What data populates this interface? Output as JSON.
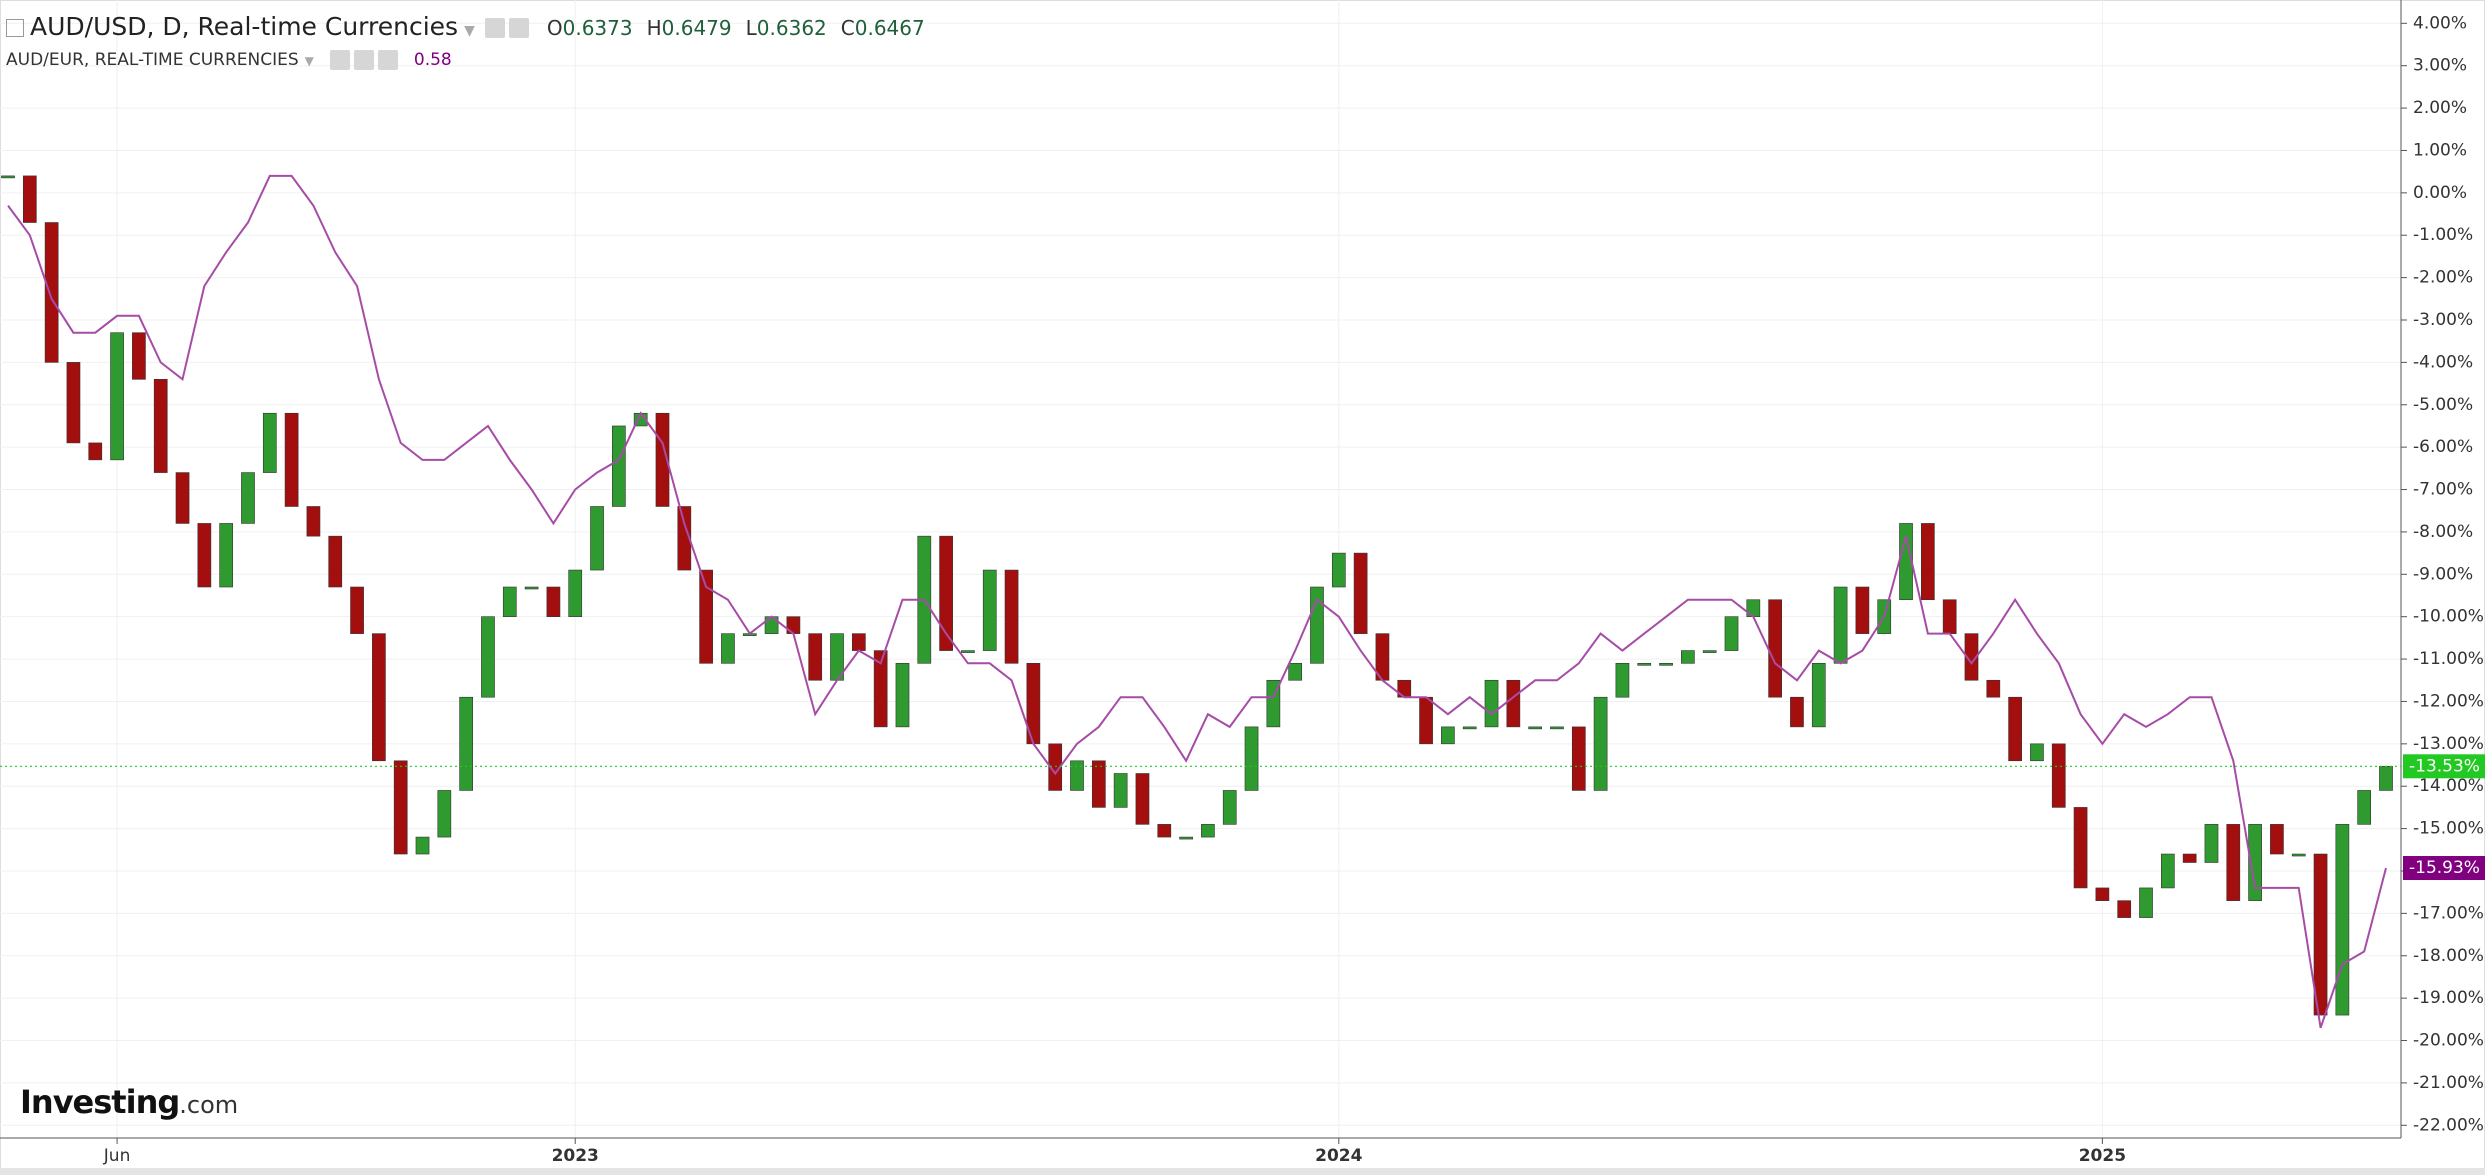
{
  "header": {
    "title": "AUD/USD, D, Real-time Currencies",
    "ohlc": [
      {
        "label": "O",
        "value": 0.6373
      },
      {
        "label": "H",
        "value": 0.6479
      },
      {
        "label": "L",
        "value": 0.6362
      },
      {
        "label": "C",
        "value": 0.6467
      }
    ],
    "overlay_title": "AUD/EUR, REAL-TIME CURRENCIES",
    "overlay_value": 0.58
  },
  "logo": {
    "brand": "Investing",
    "suffix": ".com"
  },
  "chart_data": {
    "type": "candlestick",
    "categories": [
      null,
      null,
      null,
      null,
      null,
      "Jun",
      null,
      null,
      null,
      null,
      null,
      null,
      null,
      null,
      null,
      null,
      null,
      null,
      null,
      null,
      null,
      null,
      null,
      null,
      null,
      null,
      "2023",
      null,
      null,
      null,
      null,
      null,
      null,
      null,
      null,
      null,
      null,
      null,
      null,
      null,
      null,
      null,
      null,
      null,
      null,
      null,
      null,
      null,
      null,
      null,
      null,
      null,
      null,
      null,
      null,
      null,
      null,
      null,
      null,
      null,
      null,
      "2024",
      null,
      null,
      null,
      null,
      null,
      null,
      null,
      null,
      null,
      null,
      null,
      null,
      null,
      null,
      null,
      null,
      null,
      null,
      null,
      null,
      null,
      null,
      null,
      null,
      null,
      null,
      null,
      null,
      null,
      null,
      null,
      null,
      null,
      null,
      "2025",
      null,
      null,
      null,
      null,
      null,
      null,
      null,
      null,
      null,
      null,
      null,
      null,
      null
    ],
    "series": [
      {
        "name": "AUD/USD",
        "type": "candlestick",
        "up_color": "#2f9a2f",
        "down_color": "#a30f0f",
        "color": "#22c922",
        "last_label": "-13.53%",
        "values": [
          0.4,
          -0.7,
          -4,
          -5.9,
          -6.3,
          -3.3,
          -4.4,
          -6.6,
          -7.8,
          -9.3,
          -7.8,
          -6.6,
          -5.2,
          -7.4,
          -8.1,
          -9.3,
          -10.4,
          -13.4,
          -15.6,
          -15.2,
          -14.1,
          -11.9,
          -10,
          -9.3,
          -9.3,
          -10,
          -8.9,
          -7.4,
          -5.5,
          -5.2,
          -7.4,
          -8.9,
          -11.1,
          -10.4,
          -10.4,
          -10,
          -10.4,
          -11.5,
          -10.4,
          -10.8,
          -12.6,
          -11.1,
          -8.1,
          -10.8,
          -10.8,
          -8.9,
          -11.1,
          -13,
          -14.1,
          -13.4,
          -14.5,
          -13.7,
          -14.9,
          -15.2,
          -15.2,
          -14.9,
          -14.1,
          -12.6,
          -11.5,
          -11.1,
          -9.3,
          -8.5,
          -10.4,
          -11.5,
          -11.9,
          -13,
          -12.6,
          -12.6,
          -11.5,
          -12.6,
          -12.6,
          -12.6,
          -14.1,
          -11.9,
          -11.1,
          -11.1,
          -11.1,
          -10.8,
          -10.8,
          -10,
          -9.6,
          -11.9,
          -12.6,
          -11.1,
          -9.3,
          -10.4,
          -9.6,
          -7.8,
          -9.6,
          -10.4,
          -11.5,
          -11.9,
          -13.4,
          -13,
          -14.5,
          -16.4,
          -16.7,
          -17.1,
          -16.4,
          -15.6,
          -15.8,
          -14.9,
          -16.7,
          -14.9,
          -15.6,
          -15.6,
          -19.4,
          -14.9,
          -14.1,
          -13.53
        ]
      },
      {
        "name": "AUD/EUR",
        "type": "line",
        "color": "#a64ca6",
        "label_color": "#800080",
        "last_label": "-15.93%",
        "values": [
          -0.3,
          -1,
          -2.5,
          -3.3,
          -3.3,
          -2.9,
          -2.9,
          -4,
          -4.4,
          -2.2,
          -1.4,
          -0.7,
          0.4,
          0.4,
          -0.3,
          -1.4,
          -2.2,
          -4.4,
          -5.9,
          -6.3,
          -6.3,
          -5.9,
          -5.5,
          -6.3,
          -7,
          -7.8,
          -7,
          -6.6,
          -6.3,
          -5.2,
          -5.9,
          -7.8,
          -9.3,
          -9.6,
          -10.4,
          -10,
          -10.4,
          -12.3,
          -11.5,
          -10.8,
          -11.1,
          -9.6,
          -9.6,
          -10.4,
          -11.1,
          -11.1,
          -11.5,
          -13,
          -13.7,
          -13,
          -12.6,
          -11.9,
          -11.9,
          -12.6,
          -13.4,
          -12.3,
          -12.6,
          -11.9,
          -11.9,
          -10.8,
          -9.6,
          -10,
          -10.8,
          -11.5,
          -11.9,
          -11.9,
          -12.3,
          -11.9,
          -12.3,
          -11.9,
          -11.5,
          -11.5,
          -11.1,
          -10.4,
          -10.8,
          -10.4,
          -10,
          -9.6,
          -9.6,
          -9.6,
          -10,
          -11.1,
          -11.5,
          -10.8,
          -11.1,
          -10.8,
          -10,
          -8.1,
          -10.4,
          -10.4,
          -11.1,
          -10.4,
          -9.6,
          -10.4,
          -11.1,
          -12.3,
          -13,
          -12.3,
          -12.6,
          -12.3,
          -11.9,
          -11.9,
          -13.4,
          -16.4,
          -16.4,
          -16.4,
          -19.7,
          -18.2,
          -17.9,
          -15.93
        ]
      }
    ],
    "ylim": [
      -22.3,
      4.55
    ],
    "yticks": [
      {
        "value": 4,
        "label": "4.00%"
      },
      {
        "value": 3,
        "label": "3.00%"
      },
      {
        "value": 2,
        "label": "2.00%"
      },
      {
        "value": 1,
        "label": "1.00%"
      },
      {
        "value": 0,
        "label": "0.00%"
      },
      {
        "value": -1,
        "label": "-1.00%"
      },
      {
        "value": -2,
        "label": "-2.00%"
      },
      {
        "value": -3,
        "label": "-3.00%"
      },
      {
        "value": -4,
        "label": "-4.00%"
      },
      {
        "value": -5,
        "label": "-5.00%"
      },
      {
        "value": -6,
        "label": "-6.00%"
      },
      {
        "value": -7,
        "label": "-7.00%"
      },
      {
        "value": -8,
        "label": "-8.00%"
      },
      {
        "value": -9,
        "label": "-9.00%"
      },
      {
        "value": -10,
        "label": "-10.00%"
      },
      {
        "value": -11,
        "label": "-11.00%"
      },
      {
        "value": -12,
        "label": "-12.00%"
      },
      {
        "value": -13,
        "label": "-13.00%"
      },
      {
        "value": -14,
        "label": "-14.00%"
      },
      {
        "value": -15,
        "label": "-15.00%"
      },
      {
        "value": -16,
        "label": "-16.00%"
      },
      {
        "value": -17,
        "label": "-17.00%"
      },
      {
        "value": -18,
        "label": "-18.00%"
      },
      {
        "value": -19,
        "label": "-19.00%"
      },
      {
        "value": -20,
        "label": "-20.00%"
      },
      {
        "value": -21,
        "label": "-21.00%"
      },
      {
        "value": -22,
        "label": "-22.00%"
      }
    ],
    "grid": true
  }
}
